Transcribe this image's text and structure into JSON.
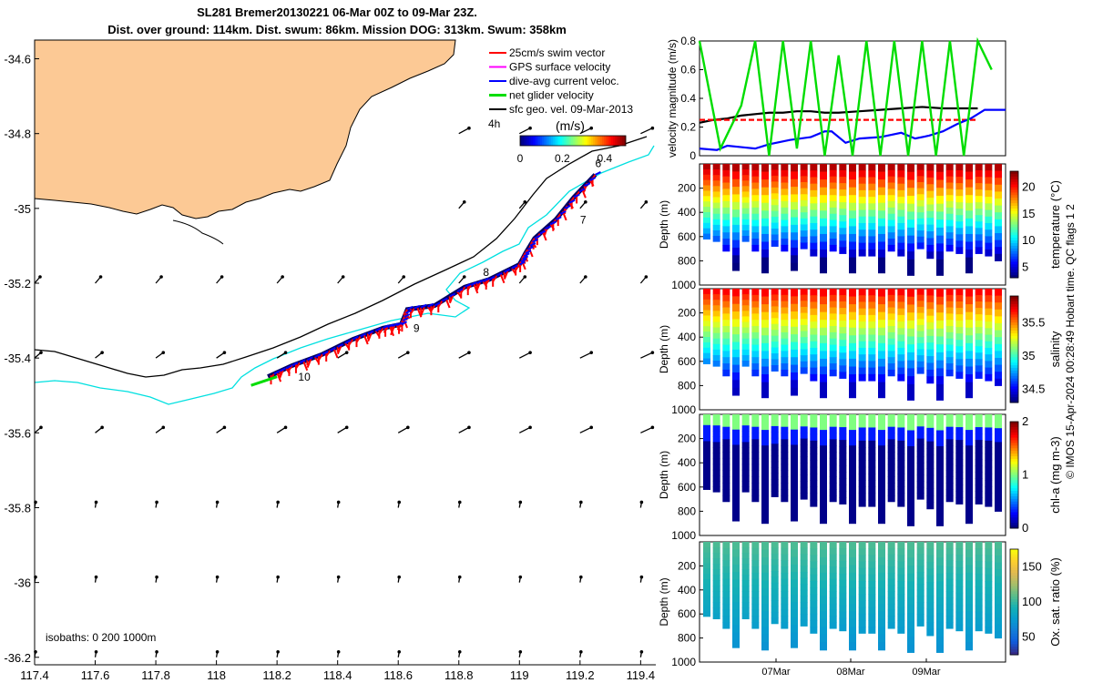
{
  "title_line1": "SL281 Bremer20130221 06-Mar 00Z to 09-Mar 23Z.",
  "title_line2": "Dist. over ground: 114km. Dist. swum: 86km. Mission DOG: 313km. Swum: 358km",
  "credit": "© IMOS 15-Apr-2024 00:28:49 Hobart time. QC flags 1 2",
  "colors": {
    "land": "#fcc995",
    "swim": "#ff0000",
    "gps": "#ff00ff",
    "current": "#0000ff",
    "net": "#00dd00",
    "geo": "#000000",
    "isobath200": "#000000",
    "isobath1000": "#00e0e0"
  },
  "chart_data": [
    {
      "type": "map",
      "xticks": [
        "117.4",
        "117.6",
        "117.8",
        "118",
        "118.2",
        "118.4",
        "118.6",
        "118.8",
        "119",
        "119.2",
        "119.4"
      ],
      "yticks": [
        "-34.6",
        "-34.8",
        "-35",
        "-35.2",
        "-35.4",
        "-35.6",
        "-35.8",
        "-36",
        "-36.2"
      ],
      "xlim": [
        117.4,
        119.45
      ],
      "ylim": [
        -36.22,
        -34.55
      ],
      "legend": [
        "25cm/s swim vector",
        "GPS surface velocity",
        "dive-avg current veloc.",
        "net glider velocity",
        "sfc geo. vel. 09-Mar-2013"
      ],
      "colorbar_label": "(m/s)",
      "colorbar_ticks": [
        "0",
        "0.2",
        "0.4"
      ],
      "colorbar_range": [
        0,
        0.5
      ],
      "time_marker": "4h",
      "isobath_label": "isobaths: 0   200  1000m",
      "day_labels": [
        {
          "text": "6",
          "lon": 119.25,
          "lat": -34.89
        },
        {
          "text": "7",
          "lon": 119.2,
          "lat": -35.04
        },
        {
          "text": "8",
          "lon": 118.88,
          "lat": -35.18
        },
        {
          "text": "9",
          "lon": 118.65,
          "lat": -35.33
        },
        {
          "text": "10",
          "lon": 118.27,
          "lat": -35.46
        }
      ],
      "glider_track": [
        [
          119.25,
          -34.91
        ],
        [
          119.18,
          -34.97
        ],
        [
          119.12,
          -35.03
        ],
        [
          119.05,
          -35.08
        ],
        [
          119.02,
          -35.12
        ],
        [
          119.0,
          -35.15
        ],
        [
          118.9,
          -35.19
        ],
        [
          118.82,
          -35.21
        ],
        [
          118.72,
          -35.26
        ],
        [
          118.63,
          -35.27
        ],
        [
          118.61,
          -35.31
        ],
        [
          118.55,
          -35.32
        ],
        [
          118.45,
          -35.35
        ],
        [
          118.35,
          -35.39
        ],
        [
          118.25,
          -35.42
        ],
        [
          118.17,
          -35.45
        ]
      ],
      "net_velocity": {
        "lon": 118.2,
        "lat": -35.45,
        "u": -0.15,
        "v": -0.05
      },
      "geo_vectors_visible": true
    },
    {
      "type": "line",
      "ylabel": "velocity magnitude (m/s)",
      "yticks": [
        "0",
        "0.2",
        "0.4",
        "0.6",
        "0.8"
      ],
      "ylim": [
        0,
        0.8
      ],
      "series": [
        {
          "color": "#000000",
          "values": [
            [
              0,
              0.23
            ],
            [
              0.2,
              0.25
            ],
            [
              0.4,
              0.26
            ],
            [
              0.6,
              0.28
            ],
            [
              0.8,
              0.29
            ],
            [
              1,
              0.3
            ],
            [
              1.2,
              0.3
            ],
            [
              1.4,
              0.31
            ],
            [
              1.6,
              0.31
            ],
            [
              1.8,
              0.3
            ],
            [
              2,
              0.3
            ],
            [
              2.3,
              0.31
            ],
            [
              2.6,
              0.32
            ],
            [
              2.9,
              0.33
            ],
            [
              3.2,
              0.34
            ],
            [
              3.5,
              0.33
            ],
            [
              4,
              0.33
            ]
          ]
        },
        {
          "color": "#ff0000",
          "values": [
            [
              0,
              0.25
            ],
            [
              4,
              0.25
            ]
          ]
        },
        {
          "color": "#0000ff",
          "values": [
            [
              0,
              0.05
            ],
            [
              0.25,
              0.04
            ],
            [
              0.4,
              0.07
            ],
            [
              0.6,
              0.06
            ],
            [
              0.8,
              0.05
            ],
            [
              1.0,
              0.08
            ],
            [
              1.3,
              0.11
            ],
            [
              1.6,
              0.13
            ],
            [
              1.8,
              0.17
            ],
            [
              1.9,
              0.17
            ],
            [
              2.1,
              0.09
            ],
            [
              2.3,
              0.12
            ],
            [
              2.6,
              0.13
            ],
            [
              2.9,
              0.16
            ],
            [
              3.1,
              0.12
            ],
            [
              3.3,
              0.14
            ],
            [
              3.5,
              0.17
            ],
            [
              3.7,
              0.22
            ],
            [
              3.9,
              0.26
            ],
            [
              4.1,
              0.32
            ],
            [
              4.4,
              0.32
            ]
          ]
        },
        {
          "color": "#00dd00",
          "values": [
            [
              0,
              0.8
            ],
            [
              0.3,
              0.05
            ],
            [
              0.6,
              0.35
            ],
            [
              0.8,
              0.8
            ],
            [
              1.0,
              0.0
            ],
            [
              1.2,
              0.8
            ],
            [
              1.4,
              0.05
            ],
            [
              1.6,
              0.8
            ],
            [
              1.8,
              0.0
            ],
            [
              2.0,
              0.7
            ],
            [
              2.2,
              0.0
            ],
            [
              2.4,
              0.8
            ],
            [
              2.6,
              0.0
            ],
            [
              2.8,
              0.8
            ],
            [
              3.0,
              0.0
            ],
            [
              3.2,
              0.8
            ],
            [
              3.4,
              0.0
            ],
            [
              3.6,
              0.8
            ],
            [
              3.8,
              0.0
            ],
            [
              4.0,
              0.8
            ],
            [
              4.2,
              0.6
            ]
          ]
        }
      ]
    },
    {
      "type": "heatmap",
      "ylabel": "Depth (m)",
      "colorbar_label": "temperature (°C)",
      "colorbar_ticks": [
        "20",
        "15",
        "10",
        "5"
      ],
      "colorbar_range": [
        3,
        23
      ],
      "yticks": [
        "200",
        "400",
        "600",
        "800",
        "1000"
      ],
      "ylim": [
        1000,
        0
      ],
      "surface_value": 22,
      "deep_value": 3,
      "dive_max_depths": [
        620,
        640,
        720,
        880,
        640,
        720,
        900,
        680,
        720,
        880,
        700,
        760,
        900,
        720,
        740,
        900,
        760,
        760,
        900,
        720,
        760,
        920,
        700,
        780,
        920,
        720,
        740,
        900,
        740,
        760,
        800
      ]
    },
    {
      "type": "heatmap",
      "ylabel": "Depth (m)",
      "colorbar_label": "salinity",
      "colorbar_ticks": [
        "35.5",
        "35",
        "34.5"
      ],
      "colorbar_range": [
        34.3,
        35.9
      ],
      "yticks": [
        "200",
        "400",
        "600",
        "800",
        "1000"
      ],
      "ylim": [
        1000,
        0
      ],
      "surface_value": 35.7,
      "deep_value": 34.4,
      "dive_max_depths": [
        620,
        640,
        720,
        880,
        640,
        720,
        900,
        680,
        720,
        880,
        700,
        760,
        900,
        720,
        740,
        900,
        760,
        760,
        900,
        720,
        760,
        920,
        700,
        780,
        920,
        720,
        740,
        900,
        740,
        760,
        800
      ]
    },
    {
      "type": "heatmap",
      "ylabel": "Depth (m)",
      "colorbar_label": "chl-a (mg m-3)",
      "colorbar_ticks": [
        "2",
        "1",
        "0"
      ],
      "colorbar_range": [
        0,
        2
      ],
      "yticks": [
        "200",
        "400",
        "600",
        "800",
        "1000"
      ],
      "ylim": [
        1000,
        0
      ],
      "surface_value": 1.0,
      "deep_value": 0.0,
      "dive_max_depths": [
        620,
        640,
        720,
        880,
        640,
        720,
        900,
        680,
        720,
        880,
        700,
        760,
        900,
        720,
        740,
        900,
        760,
        760,
        900,
        720,
        760,
        920,
        700,
        780,
        920,
        720,
        740,
        900,
        740,
        760,
        800
      ]
    },
    {
      "type": "heatmap",
      "ylabel": "Depth (m)",
      "colorbar_label": "Ox. sat. ratio (%)",
      "colorbar_ticks": [
        "150",
        "100",
        "50"
      ],
      "colorbar_range": [
        25,
        175
      ],
      "yticks": [
        "200",
        "400",
        "600",
        "800",
        "1000"
      ],
      "ylim": [
        1000,
        0
      ],
      "surface_value": 105,
      "deep_value": 70,
      "xticks": [
        "07Mar",
        "08Mar",
        "09Mar"
      ],
      "dive_max_depths": [
        620,
        640,
        720,
        880,
        640,
        720,
        900,
        680,
        720,
        880,
        700,
        760,
        900,
        720,
        740,
        900,
        760,
        760,
        900,
        720,
        760,
        920,
        700,
        780,
        920,
        720,
        740,
        900,
        740,
        760,
        800
      ]
    }
  ]
}
